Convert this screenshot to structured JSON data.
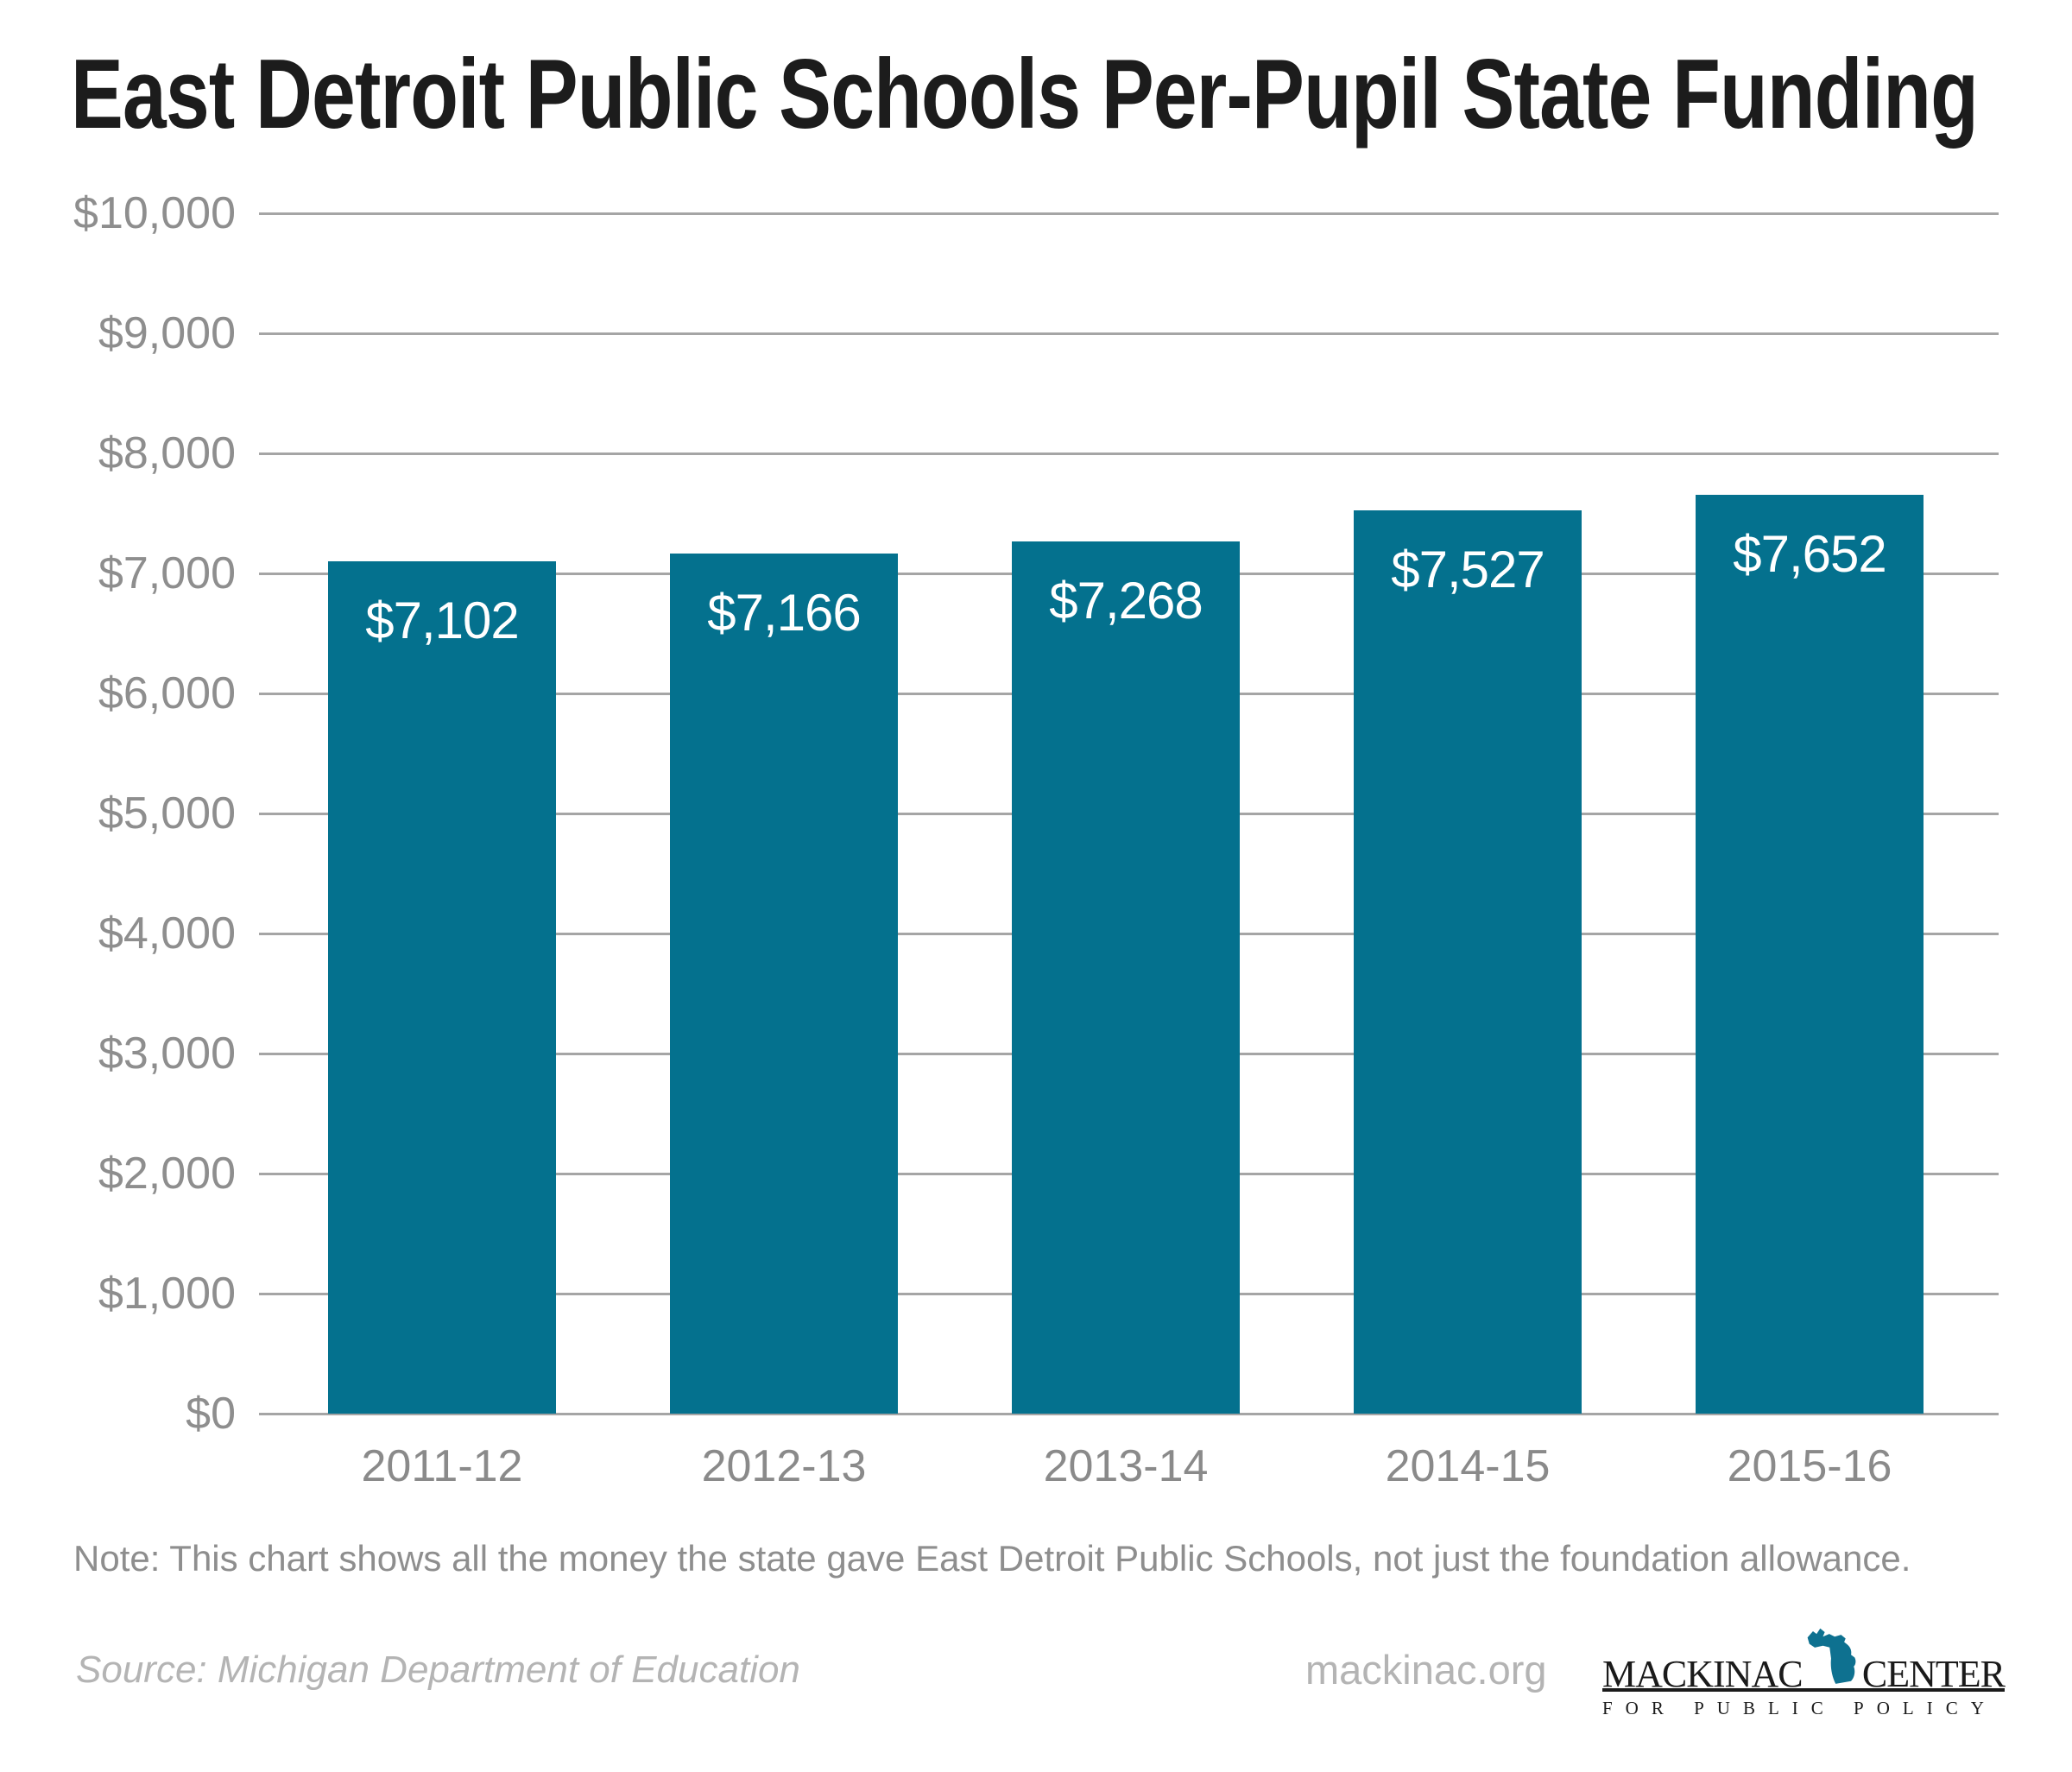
{
  "header": {
    "title": "East Detroit Public Schools Per-Pupil State Funding"
  },
  "chart_data": {
    "type": "bar",
    "title": "East Detroit Public Schools Per-Pupil State Funding",
    "categories": [
      "2011-12",
      "2012-13",
      "2013-14",
      "2014-15",
      "2015-16"
    ],
    "values": [
      7102,
      7166,
      7268,
      7527,
      7652
    ],
    "value_labels": [
      "$7,102",
      "$7,166",
      "$7,268",
      "$7,527",
      "$7,652"
    ],
    "xlabel": "",
    "ylabel": "",
    "ylim": [
      0,
      10000
    ],
    "ytick_step": 1000,
    "ytick_labels": [
      "$0",
      "$1,000",
      "$2,000",
      "$3,000",
      "$4,000",
      "$5,000",
      "$6,000",
      "$7,000",
      "$8,000",
      "$9,000",
      "$10,000"
    ],
    "grid": true,
    "legend": false,
    "bar_color": "#04718e",
    "grid_color": "#a5a5a5"
  },
  "note": {
    "text": "Note: This chart shows all the money the state gave East Detroit Public Schools, not just the foundation allowance."
  },
  "footer": {
    "source": "Source: Michigan Department of Education",
    "website": "mackinac.org"
  },
  "logo": {
    "name_left": "MACKINAC",
    "name_right": "CENTER",
    "tagline": "FOR PUBLIC POLICY",
    "michigan_color": "#0e7190"
  }
}
